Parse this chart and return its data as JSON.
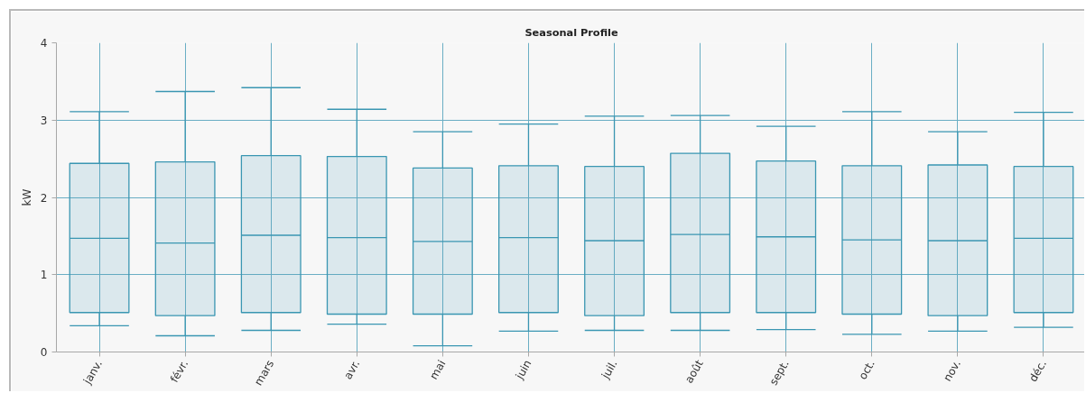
{
  "chart_data": {
    "type": "box",
    "title": "Seasonal Profile",
    "ylabel": "kW",
    "categories": [
      "janv.",
      "févr.",
      "mars",
      "avr.",
      "mai",
      "juin",
      "juil.",
      "août",
      "sept.",
      "oct.",
      "nov.",
      "déc."
    ],
    "series": [
      {
        "color": "#3a96b2",
        "boxes": [
          {
            "low": 0.34,
            "q1": 0.51,
            "median": 1.47,
            "q3": 2.44,
            "high": 3.11
          },
          {
            "low": 0.21,
            "q1": 0.47,
            "median": 1.41,
            "q3": 2.46,
            "high": 3.37
          },
          {
            "low": 0.28,
            "q1": 0.51,
            "median": 1.51,
            "q3": 2.54,
            "high": 3.42
          },
          {
            "low": 0.36,
            "q1": 0.49,
            "median": 1.48,
            "q3": 2.53,
            "high": 3.14
          },
          {
            "low": 0.08,
            "q1": 0.49,
            "median": 1.43,
            "q3": 2.38,
            "high": 2.85
          },
          {
            "low": 0.27,
            "q1": 0.51,
            "median": 1.48,
            "q3": 2.41,
            "high": 2.95
          },
          {
            "low": 0.28,
            "q1": 0.47,
            "median": 1.44,
            "q3": 2.4,
            "high": 3.05
          },
          {
            "low": 0.28,
            "q1": 0.51,
            "median": 1.52,
            "q3": 2.57,
            "high": 3.06
          },
          {
            "low": 0.29,
            "q1": 0.51,
            "median": 1.49,
            "q3": 2.47,
            "high": 2.92
          },
          {
            "low": 0.23,
            "q1": 0.49,
            "median": 1.45,
            "q3": 2.41,
            "high": 3.11
          },
          {
            "low": 0.27,
            "q1": 0.47,
            "median": 1.44,
            "q3": 2.42,
            "high": 2.85
          },
          {
            "low": 0.32,
            "q1": 0.51,
            "median": 1.47,
            "q3": 2.4,
            "high": 3.1
          }
        ]
      }
    ],
    "ylim": [
      0,
      4
    ],
    "yticks": [
      0,
      1,
      2,
      3,
      4
    ],
    "grid": true
  }
}
